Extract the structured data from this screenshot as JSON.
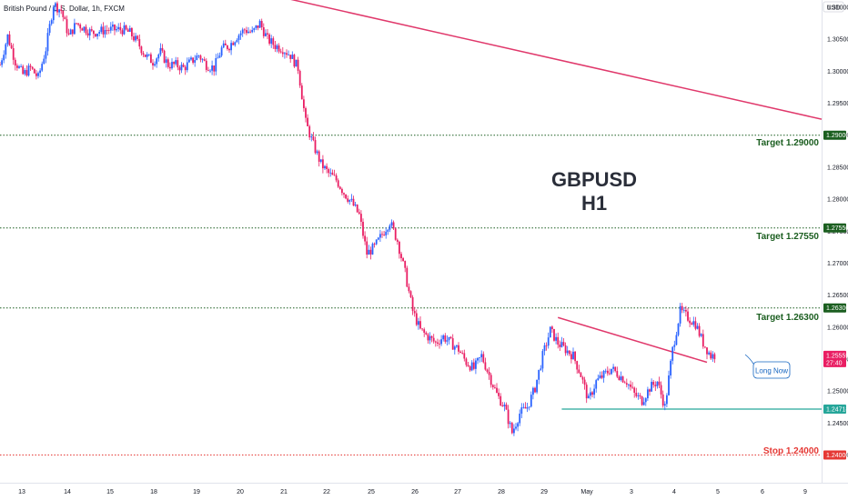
{
  "header": {
    "symbol_desc": "British Pound / U.S. Dollar, 1h, FXCM",
    "currency": "USD"
  },
  "title": {
    "line1": "GBPUSD",
    "line2": "H1"
  },
  "colors": {
    "up": "#2962ff",
    "down": "#e91e63",
    "trendline": "#e0386b",
    "target": "#1b5e20",
    "stop": "#e53935",
    "support": "#26a69a",
    "callout_border": "#1565c0"
  },
  "price_axis": {
    "labels": [
      "1.31000",
      "1.30500",
      "1.30000",
      "1.29500",
      "1.29000",
      "1.28500",
      "1.28000",
      "1.27500",
      "1.27000",
      "1.26500",
      "1.26000",
      "1.25500",
      "1.25000",
      "1.24500",
      "1.24000"
    ]
  },
  "time_axis": {
    "labels": [
      "13",
      "14",
      "15",
      "18",
      "19",
      "20",
      "21",
      "22",
      "25",
      "26",
      "27",
      "28",
      "29",
      "May",
      "3",
      "4",
      "5",
      "6",
      "9"
    ]
  },
  "levels": {
    "target1": {
      "label": "Target 1.29000",
      "tag": "1.29000"
    },
    "target2": {
      "label": "Target 1.27550",
      "tag": "1.27550"
    },
    "target3": {
      "label": "Target 1.26300",
      "tag": "1.26300"
    },
    "stop": {
      "label": "Stop 1.24000",
      "tag": "1.24000"
    },
    "support": {
      "tag": "1.24718"
    },
    "current": {
      "price": "1.25559",
      "countdown": "27:40"
    }
  },
  "annotation": {
    "text": "Long Now"
  },
  "chart_data": {
    "type": "candlestick",
    "symbol": "GBPUSD",
    "timeframe": "1h",
    "x_ticks": [
      "13",
      "14",
      "15",
      "18",
      "19",
      "20",
      "21",
      "22",
      "25",
      "26",
      "27",
      "28",
      "29",
      "May",
      "3",
      "4",
      "5",
      "6",
      "9"
    ],
    "y_ticks": [
      1.31,
      1.305,
      1.3,
      1.295,
      1.29,
      1.285,
      1.28,
      1.275,
      1.27,
      1.265,
      1.26,
      1.255,
      1.25,
      1.245,
      1.24
    ],
    "ylim": [
      1.2383,
      1.3122
    ],
    "horizontal_levels": [
      {
        "name": "Target 1.29000",
        "value": 1.29
      },
      {
        "name": "Target 1.27550",
        "value": 1.2755
      },
      {
        "name": "Target 1.26300",
        "value": 1.263
      },
      {
        "name": "Stop 1.24000",
        "value": 1.24
      }
    ],
    "support_level": 1.24718,
    "current_price": 1.25559,
    "approx_close_path": [
      [
        0,
        1.301
      ],
      [
        2,
        1.3055
      ],
      [
        4,
        1.3015
      ],
      [
        6,
        1.2995
      ],
      [
        8,
        1.3005
      ],
      [
        10,
        1.299
      ],
      [
        12,
        1.3035
      ],
      [
        14,
        1.3105
      ],
      [
        16,
        1.3095
      ],
      [
        18,
        1.3055
      ],
      [
        20,
        1.3075
      ],
      [
        24,
        1.306
      ],
      [
        28,
        1.3065
      ],
      [
        32,
        1.3065
      ],
      [
        34,
        1.306
      ],
      [
        36,
        1.3045
      ],
      [
        38,
        1.3025
      ],
      [
        40,
        1.3015
      ],
      [
        42,
        1.303
      ],
      [
        44,
        1.301
      ],
      [
        46,
        1.301
      ],
      [
        48,
        1.3005
      ],
      [
        50,
        1.3015
      ],
      [
        52,
        1.3025
      ],
      [
        54,
        1.301
      ],
      [
        56,
        1.3005
      ],
      [
        58,
        1.3035
      ],
      [
        60,
        1.304
      ],
      [
        62,
        1.3055
      ],
      [
        64,
        1.3065
      ],
      [
        66,
        1.306
      ],
      [
        68,
        1.3075
      ],
      [
        70,
        1.305
      ],
      [
        72,
        1.304
      ],
      [
        74,
        1.3035
      ],
      [
        76,
        1.3025
      ],
      [
        78,
        1.3005
      ],
      [
        80,
        1.292
      ],
      [
        82,
        1.2885
      ],
      [
        84,
        1.2855
      ],
      [
        86,
        1.284
      ],
      [
        88,
        1.283
      ],
      [
        90,
        1.281
      ],
      [
        92,
        1.2795
      ],
      [
        94,
        1.2775
      ],
      [
        96,
        1.2715
      ],
      [
        98,
        1.2725
      ],
      [
        100,
        1.2745
      ],
      [
        102,
        1.2765
      ],
      [
        104,
        1.2735
      ],
      [
        106,
        1.2685
      ],
      [
        108,
        1.2625
      ],
      [
        110,
        1.2595
      ],
      [
        112,
        1.2585
      ],
      [
        114,
        1.2575
      ],
      [
        116,
        1.2585
      ],
      [
        118,
        1.2575
      ],
      [
        120,
        1.2565
      ],
      [
        122,
        1.2545
      ],
      [
        124,
        1.2535
      ],
      [
        126,
        1.2555
      ],
      [
        128,
        1.2525
      ],
      [
        130,
        1.2495
      ],
      [
        132,
        1.2475
      ],
      [
        134,
        1.2435
      ],
      [
        136,
        1.2465
      ],
      [
        138,
        1.2475
      ],
      [
        140,
        1.2505
      ],
      [
        142,
        1.2555
      ],
      [
        144,
        1.2595
      ],
      [
        146,
        1.2575
      ],
      [
        148,
        1.2565
      ],
      [
        150,
        1.2555
      ],
      [
        152,
        1.2525
      ],
      [
        154,
        1.2485
      ],
      [
        156,
        1.2515
      ],
      [
        158,
        1.2525
      ],
      [
        160,
        1.2535
      ],
      [
        162,
        1.2525
      ],
      [
        164,
        1.2515
      ],
      [
        166,
        1.2495
      ],
      [
        168,
        1.2485
      ],
      [
        170,
        1.2505
      ],
      [
        172,
        1.2515
      ],
      [
        174,
        1.2475
      ],
      [
        176,
        1.2565
      ],
      [
        178,
        1.2625
      ],
      [
        180,
        1.2615
      ],
      [
        182,
        1.2605
      ],
      [
        184,
        1.2575
      ],
      [
        186,
        1.2555
      ],
      [
        187,
        1.2556
      ]
    ],
    "trendlines": [
      {
        "name": "long-term-down",
        "points": [
          [
            0,
            1.3215
          ],
          [
            215,
            1.2925
          ]
        ]
      },
      {
        "name": "short-term-down",
        "points": [
          [
            146,
            1.2615
          ],
          [
            185,
            1.2545
          ]
        ]
      }
    ]
  }
}
